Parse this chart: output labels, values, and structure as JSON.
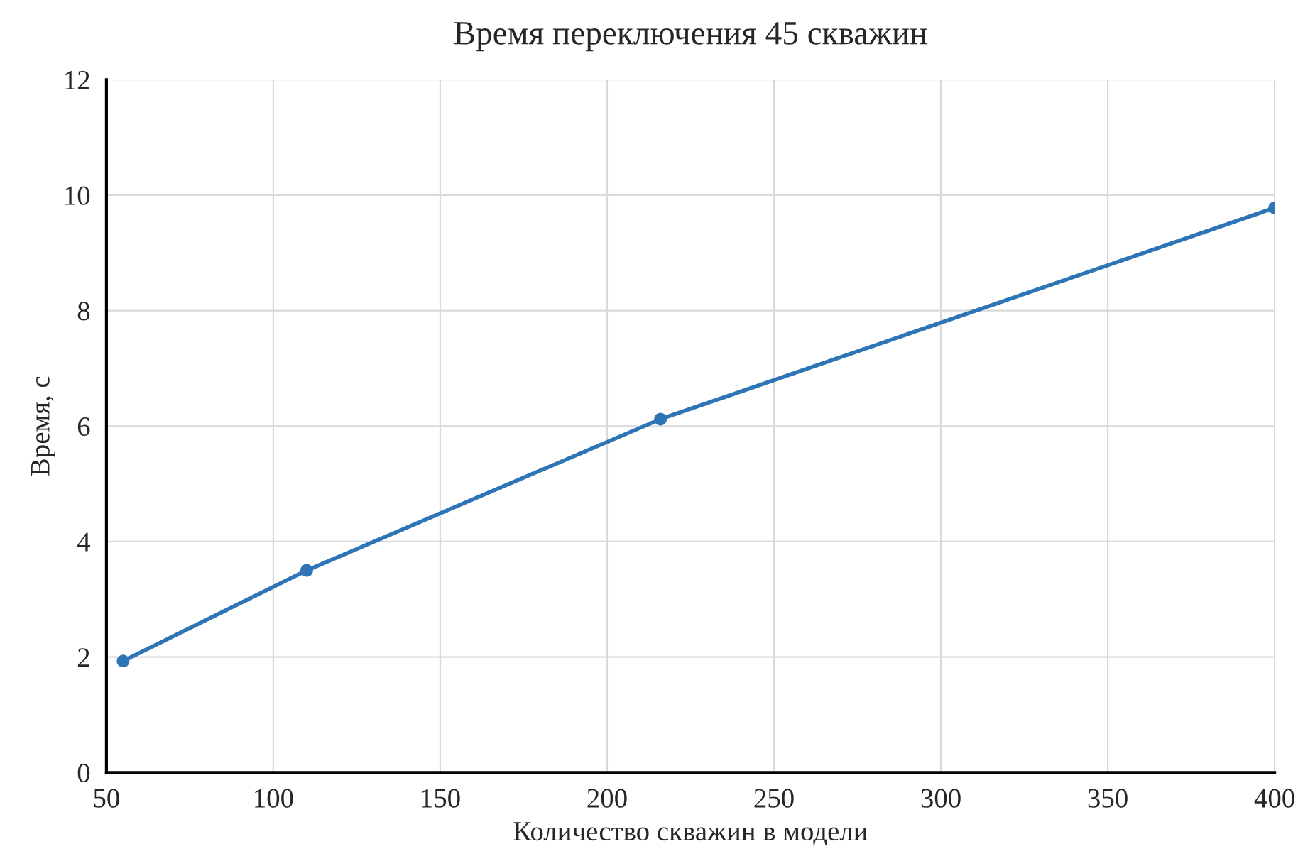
{
  "chart_data": {
    "type": "line",
    "title": "Время переключения 45 скважин",
    "xlabel": "Количество скважин в модели",
    "ylabel": "Время, с",
    "x": [
      55,
      110,
      216,
      400
    ],
    "series": [
      {
        "color": "#2e75b6",
        "values": [
          1.93,
          3.5,
          6.12,
          9.78
        ]
      }
    ],
    "xlim": [
      50,
      400
    ],
    "xticks": [
      50,
      100,
      150,
      200,
      250,
      300,
      350,
      400
    ],
    "ylim": [
      0,
      12
    ],
    "yticks": [
      0,
      2,
      4,
      6,
      8,
      10,
      12
    ],
    "grid": true,
    "marker": "circle",
    "line_style": "solid",
    "legend": false
  }
}
